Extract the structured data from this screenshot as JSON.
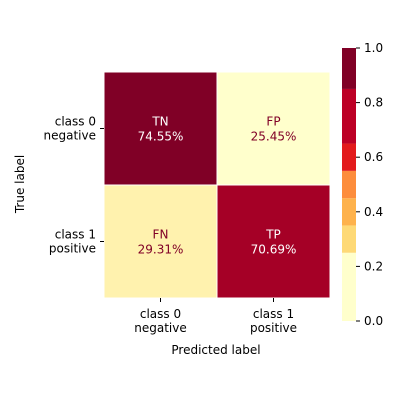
{
  "chart_data": {
    "type": "heatmap",
    "xlabel": "Predicted label",
    "ylabel": "True label",
    "x_tick_labels": [
      [
        "class 0",
        "negative"
      ],
      [
        "class 1",
        "positive"
      ]
    ],
    "y_tick_labels": [
      [
        "class 0",
        "negative"
      ],
      [
        "class 1",
        "positive"
      ]
    ],
    "cells": [
      {
        "row": 0,
        "col": 0,
        "name": "TN",
        "percent": "74.55%",
        "value": 0.7455
      },
      {
        "row": 0,
        "col": 1,
        "name": "FP",
        "percent": "25.45%",
        "value": 0.2545
      },
      {
        "row": 1,
        "col": 0,
        "name": "FN",
        "percent": "29.31%",
        "value": 0.2931
      },
      {
        "row": 1,
        "col": 1,
        "name": "TP",
        "percent": "70.69%",
        "value": 0.7069
      }
    ],
    "colorbar": {
      "vmin": 0.0,
      "vmax": 1.0,
      "ticks": [
        "0.0",
        "0.2",
        "0.4",
        "0.6",
        "0.8",
        "1.0"
      ],
      "bins": [
        {
          "from": 0.0,
          "to": 0.25,
          "color": "#ffffcc"
        },
        {
          "from": 0.25,
          "to": 0.35,
          "color": "#fed976"
        },
        {
          "from": 0.35,
          "to": 0.45,
          "color": "#feb24c"
        },
        {
          "from": 0.45,
          "to": 0.55,
          "color": "#fd8d3c"
        },
        {
          "from": 0.55,
          "to": 0.65,
          "color": "#e31a1c"
        },
        {
          "from": 0.65,
          "to": 0.85,
          "color": "#bd0026"
        },
        {
          "from": 0.85,
          "to": 1.0,
          "color": "#800026"
        }
      ]
    },
    "cell_colors": [
      "#800026",
      "#ffffcc",
      "#fff2ae",
      "#a50026"
    ],
    "label_colors": {
      "dark": "#800026",
      "light": "#ffffff"
    }
  }
}
